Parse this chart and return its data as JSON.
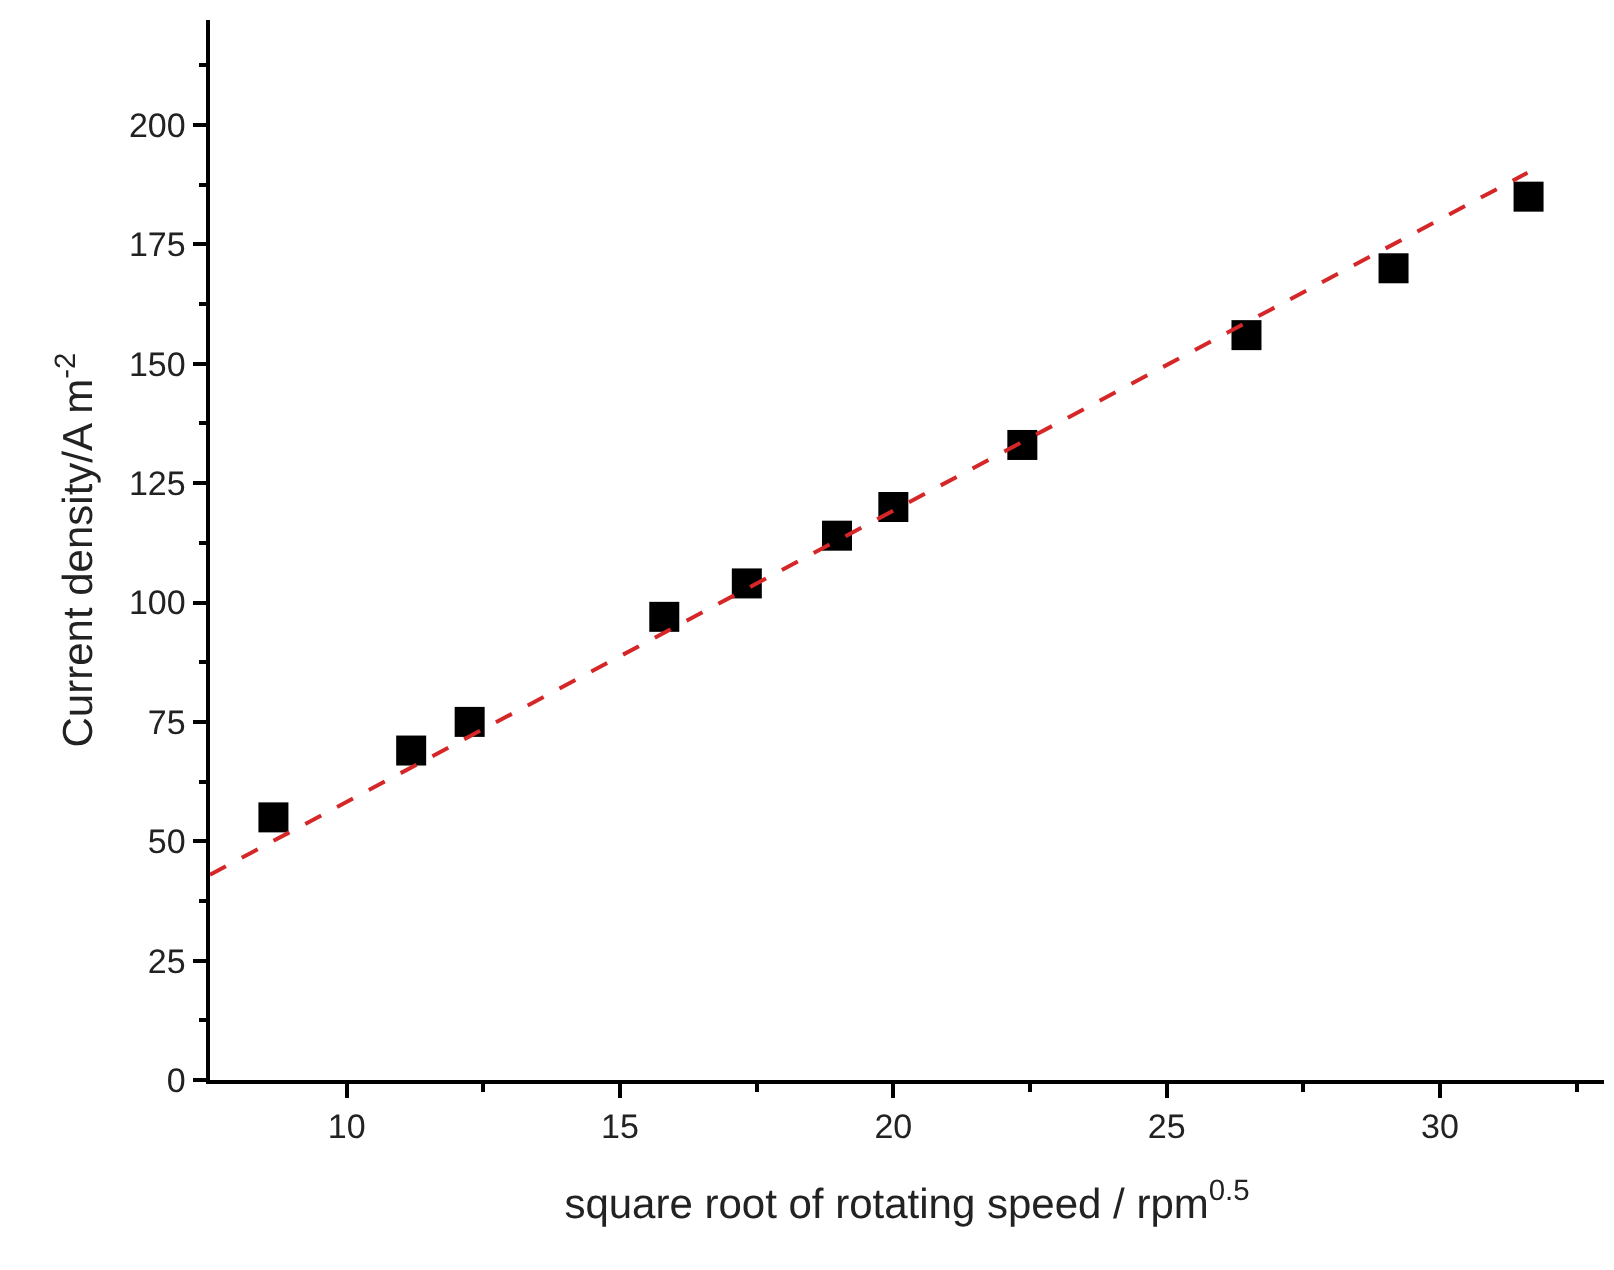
{
  "chart_data": {
    "type": "scatter",
    "xlabel": "square root of rotating speed / rpm$^{0.5}$",
    "ylabel": "Current density/A m$^{-2}$",
    "xlim": [
      7.5,
      33
    ],
    "xticks": [
      10,
      15,
      20,
      25,
      30
    ],
    "ylim": [
      0,
      222
    ],
    "yticks": [
      0,
      25,
      50,
      75,
      100,
      125,
      150,
      175,
      200
    ],
    "series": [
      {
        "marker": "square",
        "color": "#000000",
        "x": [
          8.66,
          11.18,
          12.25,
          15.81,
          17.32,
          18.97,
          20,
          22.36,
          26.46,
          29.15,
          31.62
        ],
        "values": [
          55,
          69,
          75,
          97,
          104,
          114,
          120,
          133,
          156,
          170,
          185
        ]
      },
      {
        "type": "line",
        "line_style": "dashed",
        "color": "#d62728",
        "x": [
          7.5,
          31.6
        ],
        "values": [
          43,
          190
        ]
      }
    ]
  }
}
